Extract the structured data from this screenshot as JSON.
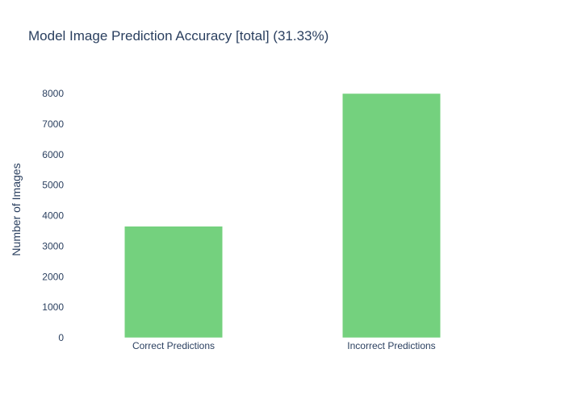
{
  "chart_data": {
    "type": "bar",
    "title": "Model Image Prediction Accuracy [total] (31.33%)",
    "xlabel": "",
    "ylabel": "Number of Images",
    "categories": [
      "Correct Predictions",
      "Incorrect Predictions"
    ],
    "values": [
      3650,
      8000
    ],
    "ylim": [
      0,
      8000
    ],
    "yticks": [
      0,
      1000,
      2000,
      3000,
      4000,
      5000,
      6000,
      7000,
      8000
    ],
    "grid": false,
    "legend": "none",
    "bar_color": "#74d17e"
  }
}
